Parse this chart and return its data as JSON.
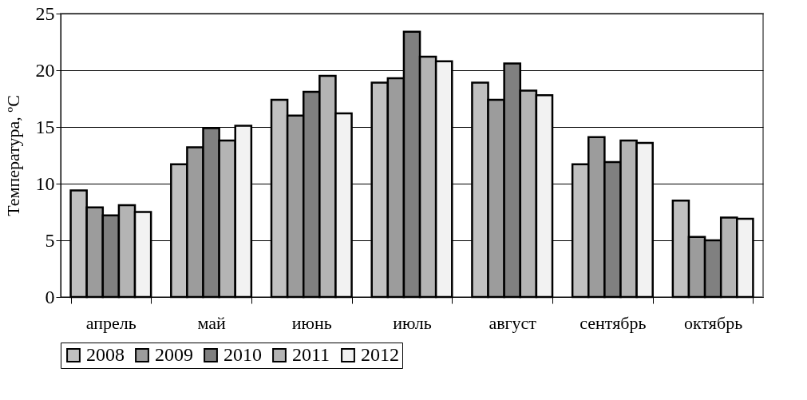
{
  "chart_data": {
    "type": "bar",
    "ylabel": "Температура, ºC",
    "categories": [
      "апрель",
      "май",
      "июнь",
      "июль",
      "август",
      "сентябрь",
      "октябрь"
    ],
    "series": [
      {
        "name": "2008",
        "color": "#c0c0c0",
        "values": [
          9.4,
          11.7,
          17.4,
          18.9,
          18.9,
          11.7,
          8.5
        ]
      },
      {
        "name": "2009",
        "color": "#9c9c9c",
        "values": [
          7.9,
          13.2,
          16.0,
          19.3,
          17.4,
          14.1,
          5.3
        ]
      },
      {
        "name": "2010",
        "color": "#808080",
        "values": [
          7.2,
          14.9,
          18.1,
          23.4,
          20.6,
          11.9,
          5.0
        ]
      },
      {
        "name": "2011",
        "color": "#b4b4b4",
        "values": [
          8.1,
          13.8,
          19.5,
          21.2,
          18.2,
          13.8,
          7.0
        ]
      },
      {
        "name": "2012",
        "color": "#f2f2f2",
        "values": [
          7.5,
          15.1,
          16.2,
          20.8,
          17.8,
          13.6,
          6.9
        ]
      }
    ],
    "ylim": [
      0,
      25
    ],
    "yticks": [
      0,
      5,
      10,
      15,
      20,
      25
    ],
    "grid": "y",
    "legend": "bottom"
  }
}
